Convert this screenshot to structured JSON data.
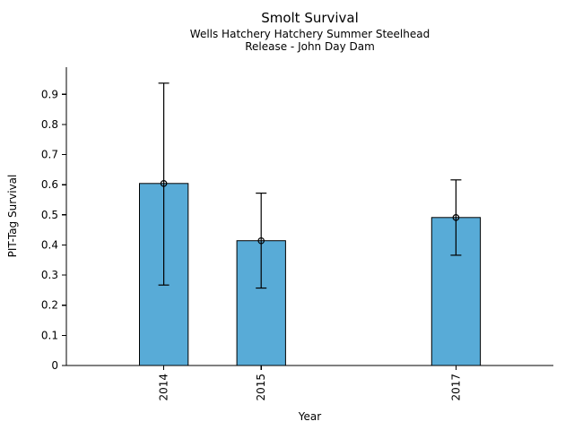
{
  "chart_data": {
    "type": "bar",
    "title": "Smolt Survival",
    "subtitle": [
      "Wells Hatchery Hatchery Summer Steelhead",
      "Release - John Day Dam"
    ],
    "xlabel": "Year",
    "ylabel": "PIT-Tag Survival",
    "categories": [
      "2014",
      "2015",
      "2017"
    ],
    "x": [
      2014,
      2015,
      2017
    ],
    "values": [
      0.604,
      0.414,
      0.491
    ],
    "error_low": [
      0.267,
      0.257,
      0.366
    ],
    "error_high": [
      0.937,
      0.572,
      0.616
    ],
    "xlim": [
      2013,
      2018
    ],
    "ylim": [
      0,
      0.99
    ],
    "yticks": [
      0,
      0.1,
      0.2,
      0.3,
      0.4,
      0.5,
      0.6,
      0.7,
      0.8,
      0.9
    ],
    "ytick_labels": [
      "0",
      "0.1",
      "0.2",
      "0.3",
      "0.4",
      "0.5",
      "0.6",
      "0.7",
      "0.8",
      "0.9"
    ],
    "bar_width_x_units": 0.5,
    "bar_color": "#58ABD7",
    "bar_edge_color": "#000000",
    "error_bar_color": "#000000",
    "marker": "open-circle",
    "grid": false,
    "legend": null,
    "spines": [
      "left",
      "bottom"
    ]
  }
}
